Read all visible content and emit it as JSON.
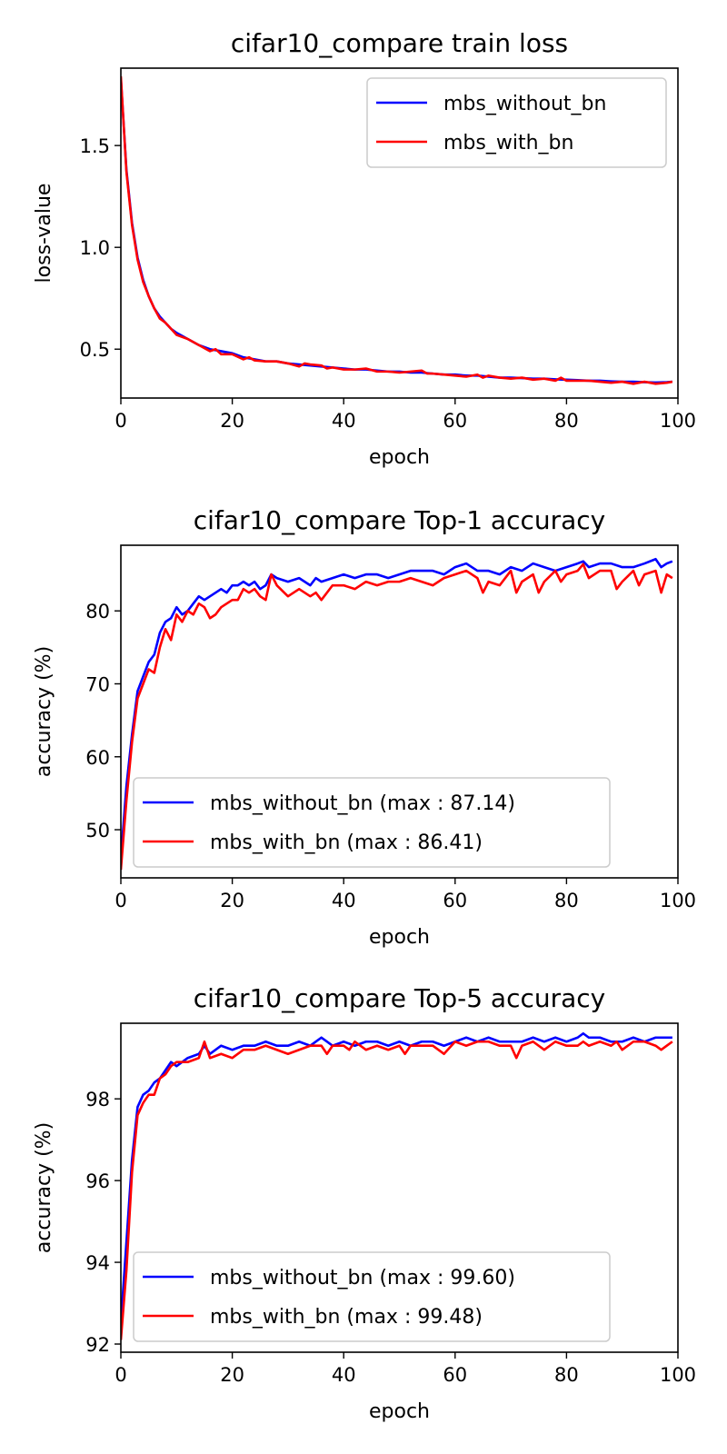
{
  "chart_data": [
    {
      "type": "line",
      "title": "cifar10_compare train loss",
      "xlabel": "epoch",
      "ylabel": "loss-value",
      "xlim": [
        0,
        100
      ],
      "ylim": [
        0.26,
        1.88
      ],
      "xticks": [
        "0",
        "20",
        "40",
        "60",
        "80",
        "100"
      ],
      "yticks": [
        "0.5",
        "1.0",
        "1.5"
      ],
      "ytick_values": [
        0.5,
        1.0,
        1.5
      ],
      "legend_position": "upper right",
      "series": [
        {
          "name": "mbs_without_bn",
          "color": "#0000ff",
          "x": [
            0,
            1,
            2,
            3,
            4,
            5,
            6,
            7,
            8,
            9,
            10,
            12,
            14,
            16,
            18,
            20,
            22,
            24,
            26,
            28,
            30,
            32,
            34,
            36,
            38,
            40,
            42,
            44,
            46,
            48,
            50,
            52,
            54,
            56,
            58,
            60,
            62,
            64,
            66,
            68,
            70,
            72,
            74,
            76,
            78,
            80,
            82,
            84,
            86,
            88,
            90,
            92,
            94,
            96,
            98,
            99
          ],
          "y": [
            1.83,
            1.38,
            1.12,
            0.95,
            0.84,
            0.76,
            0.7,
            0.66,
            0.63,
            0.6,
            0.58,
            0.55,
            0.52,
            0.5,
            0.49,
            0.48,
            0.46,
            0.45,
            0.44,
            0.44,
            0.43,
            0.425,
            0.42,
            0.415,
            0.41,
            0.405,
            0.4,
            0.4,
            0.395,
            0.39,
            0.39,
            0.385,
            0.385,
            0.38,
            0.375,
            0.375,
            0.37,
            0.37,
            0.365,
            0.36,
            0.36,
            0.358,
            0.355,
            0.355,
            0.352,
            0.35,
            0.348,
            0.345,
            0.345,
            0.342,
            0.34,
            0.34,
            0.338,
            0.336,
            0.338,
            0.34
          ]
        },
        {
          "name": "mbs_with_bn",
          "color": "#ff0000",
          "x": [
            0,
            1,
            2,
            3,
            4,
            5,
            6,
            7,
            8,
            9,
            10,
            12,
            14,
            16,
            17,
            18,
            20,
            22,
            23,
            24,
            26,
            28,
            30,
            32,
            33,
            34,
            36,
            37,
            38,
            40,
            42,
            44,
            46,
            48,
            50,
            52,
            54,
            55,
            56,
            58,
            60,
            62,
            64,
            65,
            66,
            68,
            70,
            72,
            74,
            76,
            78,
            79,
            80,
            82,
            84,
            86,
            88,
            90,
            92,
            94,
            96,
            98,
            99
          ],
          "y": [
            1.84,
            1.37,
            1.11,
            0.94,
            0.83,
            0.76,
            0.7,
            0.65,
            0.63,
            0.6,
            0.57,
            0.55,
            0.52,
            0.49,
            0.5,
            0.475,
            0.475,
            0.45,
            0.46,
            0.445,
            0.44,
            0.44,
            0.43,
            0.415,
            0.43,
            0.425,
            0.42,
            0.405,
            0.41,
            0.4,
            0.4,
            0.405,
            0.39,
            0.39,
            0.385,
            0.39,
            0.395,
            0.38,
            0.38,
            0.375,
            0.37,
            0.365,
            0.375,
            0.36,
            0.37,
            0.36,
            0.355,
            0.36,
            0.35,
            0.355,
            0.345,
            0.36,
            0.345,
            0.345,
            0.345,
            0.34,
            0.335,
            0.34,
            0.33,
            0.34,
            0.33,
            0.335,
            0.34
          ]
        }
      ]
    },
    {
      "type": "line",
      "title": "cifar10_compare Top-1 accuracy",
      "xlabel": "epoch",
      "ylabel": "accuracy (%)",
      "xlim": [
        0,
        100
      ],
      "ylim": [
        43.4,
        89.0
      ],
      "xticks": [
        "0",
        "20",
        "40",
        "60",
        "80",
        "100"
      ],
      "yticks": [
        "50",
        "60",
        "70",
        "80"
      ],
      "ytick_values": [
        50,
        60,
        70,
        80
      ],
      "legend_position": "lower left",
      "series": [
        {
          "name": "mbs_without_bn (max : 87.14)",
          "color": "#0000ff",
          "x": [
            0,
            1,
            2,
            3,
            4,
            5,
            6,
            7,
            8,
            9,
            10,
            11,
            12,
            13,
            14,
            15,
            16,
            17,
            18,
            19,
            20,
            21,
            22,
            23,
            24,
            25,
            26,
            27,
            28,
            30,
            32,
            34,
            35,
            36,
            38,
            40,
            42,
            44,
            46,
            48,
            50,
            52,
            54,
            56,
            58,
            60,
            62,
            64,
            66,
            68,
            70,
            72,
            74,
            76,
            78,
            80,
            82,
            83,
            84,
            86,
            88,
            90,
            92,
            94,
            96,
            97,
            98,
            99
          ],
          "y": [
            46,
            56,
            63,
            69,
            71,
            73,
            74,
            77,
            78.5,
            79,
            80.5,
            79.5,
            80,
            81,
            82,
            81.5,
            82,
            82.5,
            83,
            82.5,
            83.5,
            83.5,
            84,
            83.5,
            84,
            83,
            83.5,
            85,
            84.5,
            84,
            84.5,
            83.5,
            84.5,
            84,
            84.5,
            85,
            84.5,
            85,
            85,
            84.5,
            85,
            85.5,
            85.5,
            85.5,
            85,
            86,
            86.5,
            85.5,
            85.5,
            85,
            86,
            85.5,
            86.5,
            86,
            85.5,
            86,
            86.5,
            86.8,
            86,
            86.5,
            86.5,
            86,
            86,
            86.5,
            87.1,
            86,
            86.5,
            86.8
          ]
        },
        {
          "name": "mbs_with_bn (max : 86.41)",
          "color": "#ff0000",
          "x": [
            0,
            1,
            2,
            3,
            4,
            5,
            6,
            7,
            8,
            9,
            10,
            11,
            12,
            13,
            14,
            15,
            16,
            17,
            18,
            19,
            20,
            21,
            22,
            23,
            24,
            25,
            26,
            27,
            28,
            30,
            32,
            34,
            35,
            36,
            38,
            40,
            42,
            44,
            46,
            48,
            50,
            52,
            54,
            56,
            58,
            60,
            62,
            64,
            65,
            66,
            68,
            70,
            71,
            72,
            74,
            75,
            76,
            78,
            79,
            80,
            82,
            83,
            84,
            86,
            88,
            89,
            90,
            92,
            93,
            94,
            96,
            97,
            98,
            99
          ],
          "y": [
            44.5,
            54,
            62,
            68,
            70,
            72,
            71.5,
            75,
            77.5,
            76,
            79.5,
            78.5,
            80,
            79.5,
            81,
            80.5,
            79,
            79.5,
            80.5,
            81,
            81.5,
            81.5,
            83,
            82.5,
            83,
            82,
            81.5,
            85,
            83.5,
            82,
            83,
            82,
            82.5,
            81.5,
            83.5,
            83.5,
            83,
            84,
            83.5,
            84,
            84,
            84.5,
            84,
            83.5,
            84.5,
            85,
            85.5,
            84.5,
            82.5,
            84,
            83.5,
            85.5,
            82.5,
            84,
            85,
            82.5,
            84,
            85.5,
            84,
            85,
            85.5,
            86.4,
            84.5,
            85.5,
            85.5,
            83,
            84,
            85.5,
            83.5,
            85,
            85.5,
            82.5,
            85,
            84.5
          ]
        }
      ]
    },
    {
      "type": "line",
      "title": "cifar10_compare Top-5 accuracy",
      "xlabel": "epoch",
      "ylabel": "accuracy (%)",
      "xlim": [
        0,
        100
      ],
      "ylim": [
        91.8,
        99.85
      ],
      "xticks": [
        "0",
        "20",
        "40",
        "60",
        "80",
        "100"
      ],
      "yticks": [
        "92",
        "94",
        "96",
        "98"
      ],
      "ytick_values": [
        92,
        94,
        96,
        98
      ],
      "legend_position": "lower left",
      "series": [
        {
          "name": "mbs_without_bn (max : 99.60)",
          "color": "#0000ff",
          "x": [
            0,
            1,
            2,
            3,
            4,
            5,
            6,
            7,
            8,
            9,
            10,
            12,
            14,
            15,
            16,
            18,
            20,
            22,
            24,
            26,
            28,
            30,
            32,
            34,
            36,
            38,
            40,
            42,
            44,
            46,
            48,
            50,
            52,
            54,
            56,
            58,
            60,
            62,
            64,
            66,
            68,
            70,
            72,
            74,
            76,
            78,
            80,
            82,
            83,
            84,
            86,
            88,
            90,
            92,
            94,
            96,
            98,
            99
          ],
          "y": [
            92.5,
            94.5,
            96.5,
            97.8,
            98.1,
            98.2,
            98.4,
            98.5,
            98.7,
            98.9,
            98.8,
            99.0,
            99.1,
            99.3,
            99.1,
            99.3,
            99.2,
            99.3,
            99.3,
            99.4,
            99.3,
            99.3,
            99.4,
            99.3,
            99.5,
            99.3,
            99.4,
            99.3,
            99.4,
            99.4,
            99.3,
            99.4,
            99.3,
            99.4,
            99.4,
            99.3,
            99.4,
            99.5,
            99.4,
            99.5,
            99.4,
            99.4,
            99.4,
            99.5,
            99.4,
            99.5,
            99.4,
            99.5,
            99.6,
            99.5,
            99.5,
            99.4,
            99.4,
            99.5,
            99.4,
            99.5,
            99.5,
            99.5
          ]
        },
        {
          "name": "mbs_with_bn (max : 99.48)",
          "color": "#ff0000",
          "x": [
            0,
            1,
            2,
            3,
            4,
            5,
            6,
            7,
            8,
            9,
            10,
            12,
            14,
            15,
            16,
            18,
            20,
            22,
            24,
            26,
            28,
            30,
            32,
            34,
            36,
            37,
            38,
            40,
            41,
            42,
            44,
            46,
            48,
            50,
            51,
            52,
            54,
            56,
            58,
            60,
            62,
            64,
            66,
            68,
            70,
            71,
            72,
            74,
            76,
            78,
            80,
            82,
            83,
            84,
            86,
            88,
            89,
            90,
            92,
            94,
            96,
            97,
            98,
            99
          ],
          "y": [
            92.1,
            93.8,
            96.2,
            97.6,
            97.9,
            98.1,
            98.1,
            98.5,
            98.6,
            98.8,
            98.9,
            98.9,
            99.0,
            99.4,
            99.0,
            99.1,
            99.0,
            99.2,
            99.2,
            99.3,
            99.2,
            99.1,
            99.2,
            99.3,
            99.3,
            99.1,
            99.3,
            99.3,
            99.2,
            99.4,
            99.2,
            99.3,
            99.2,
            99.3,
            99.1,
            99.3,
            99.3,
            99.3,
            99.1,
            99.4,
            99.3,
            99.4,
            99.4,
            99.3,
            99.3,
            99.0,
            99.3,
            99.4,
            99.2,
            99.4,
            99.3,
            99.3,
            99.4,
            99.3,
            99.4,
            99.3,
            99.4,
            99.2,
            99.4,
            99.4,
            99.3,
            99.2,
            99.3,
            99.4
          ]
        }
      ]
    }
  ]
}
